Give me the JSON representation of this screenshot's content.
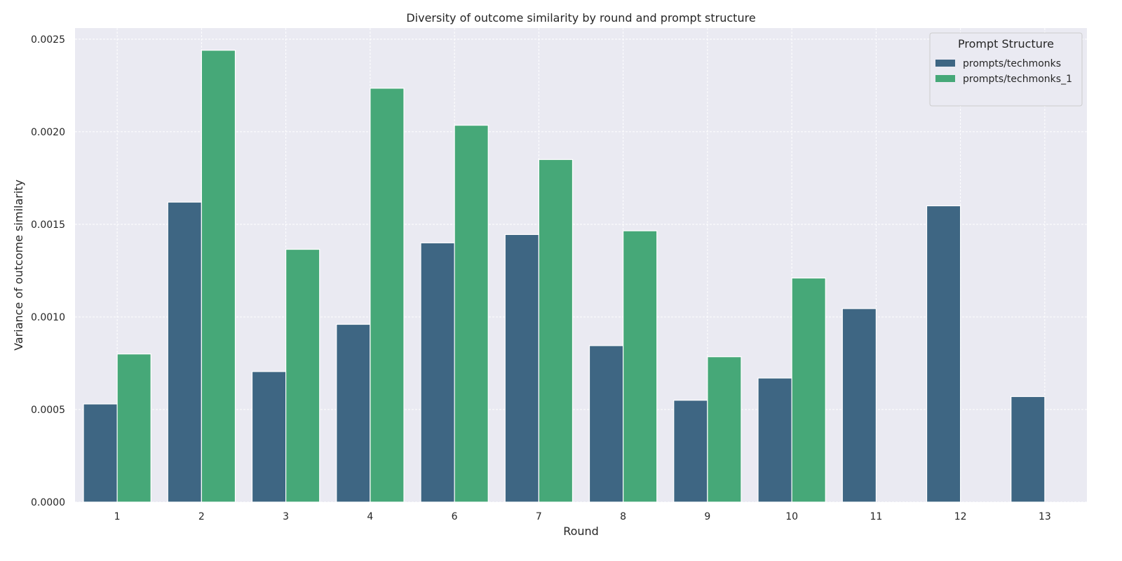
{
  "chart_data": {
    "type": "bar",
    "title": "Diversity of outcome similarity by round and prompt structure",
    "xlabel": "Round",
    "ylabel": "Variance of outcome similarity",
    "categories": [
      "1",
      "2",
      "3",
      "4",
      "6",
      "7",
      "8",
      "9",
      "10",
      "11",
      "12",
      "13"
    ],
    "ylim": [
      0,
      0.00256
    ],
    "yticks": [
      "0.0000",
      "0.0005",
      "0.0010",
      "0.0015",
      "0.0020",
      "0.0025"
    ],
    "grid": true,
    "legend": {
      "title": "Prompt Structure",
      "placement": "top-right"
    },
    "series": [
      {
        "name": "prompts/techmonks",
        "color": "#3e6683",
        "values": [
          0.00053,
          0.00162,
          0.000705,
          0.00096,
          0.0014,
          0.001445,
          0.000845,
          0.00055,
          0.00067,
          0.001045,
          0.0016,
          0.00057
        ]
      },
      {
        "name": "prompts/techmonks_1",
        "color": "#46a878",
        "values": [
          0.0008,
          0.00244,
          0.001365,
          0.002235,
          0.002035,
          0.00185,
          0.001465,
          0.000785,
          0.00121,
          null,
          null,
          null
        ]
      }
    ]
  }
}
